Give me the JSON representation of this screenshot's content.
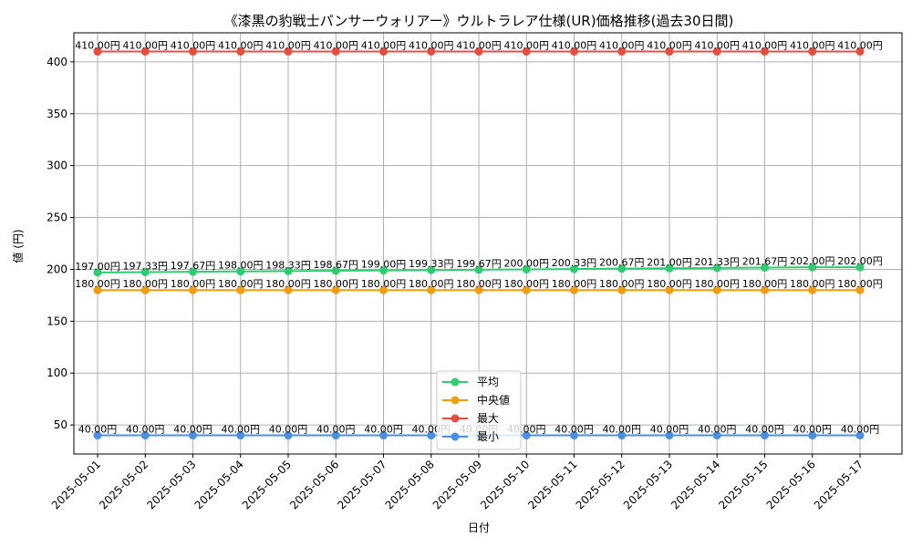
{
  "chart_data": {
    "type": "line",
    "title": "《漆黒の豹戦士パンサーウォリアー》ウルトラレア仕様(UR)価格推移(過去30日間)",
    "xlabel": "日付",
    "ylabel": "値 (円)",
    "ylim": [
      22,
      428
    ],
    "yticks": [
      50,
      100,
      150,
      200,
      250,
      300,
      350,
      400
    ],
    "grid": true,
    "legend_position": "bottom-center",
    "categories": [
      "2025-05-01",
      "2025-05-02",
      "2025-05-03",
      "2025-05-04",
      "2025-05-05",
      "2025-05-06",
      "2025-05-07",
      "2025-05-08",
      "2025-05-09",
      "2025-05-10",
      "2025-05-11",
      "2025-05-12",
      "2025-05-13",
      "2025-05-14",
      "2025-05-15",
      "2025-05-16",
      "2025-05-17"
    ],
    "series": [
      {
        "name": "平均",
        "color": "#2ecc71",
        "values": [
          197.0,
          197.33,
          197.67,
          198.0,
          198.33,
          198.67,
          199.0,
          199.33,
          199.67,
          200.0,
          200.33,
          200.67,
          201.0,
          201.33,
          201.67,
          202.0,
          202.0
        ],
        "labels": [
          "197.00円",
          "197.33円",
          "197.67円",
          "198.00円",
          "198.33円",
          "198.67円",
          "199.00円",
          "199.33円",
          "199.67円",
          "200.00円",
          "200.33円",
          "200.67円",
          "201.00円",
          "201.33円",
          "201.67円",
          "202.00円",
          "202.00円"
        ]
      },
      {
        "name": "中央値",
        "color": "#f39c12",
        "values": [
          180,
          180,
          180,
          180,
          180,
          180,
          180,
          180,
          180,
          180,
          180,
          180,
          180,
          180,
          180,
          180,
          180
        ],
        "labels": [
          "180.00円",
          "180.00円",
          "180.00円",
          "180.00円",
          "180.00円",
          "180.00円",
          "180.00円",
          "180.00円",
          "180.00円",
          "180.00円",
          "180.00円",
          "180.00円",
          "180.00円",
          "180.00円",
          "180.00円",
          "180.00円",
          "180.00円"
        ]
      },
      {
        "name": "最大",
        "color": "#e74c3c",
        "values": [
          410,
          410,
          410,
          410,
          410,
          410,
          410,
          410,
          410,
          410,
          410,
          410,
          410,
          410,
          410,
          410,
          410
        ],
        "labels": [
          "410.00円",
          "410.00円",
          "410.00円",
          "410.00円",
          "410.00円",
          "410.00円",
          "410.00円",
          "410.00円",
          "410.00円",
          "410.00円",
          "410.00円",
          "410.00円",
          "410.00円",
          "410.00円",
          "410.00円",
          "410.00円",
          "410.00円"
        ]
      },
      {
        "name": "最小",
        "color": "#4a90e2",
        "values": [
          40,
          40,
          40,
          40,
          40,
          40,
          40,
          40,
          40,
          40,
          40,
          40,
          40,
          40,
          40,
          40,
          40
        ],
        "labels": [
          "40.00円",
          "40.00円",
          "40.00円",
          "40.00円",
          "40.00円",
          "40.00円",
          "40.00円",
          "40.00円",
          "40.00円",
          "40.00円",
          "40.00円",
          "40.00円",
          "40.00円",
          "40.00円",
          "40.00円",
          "40.00円",
          "40.00円"
        ]
      }
    ]
  }
}
